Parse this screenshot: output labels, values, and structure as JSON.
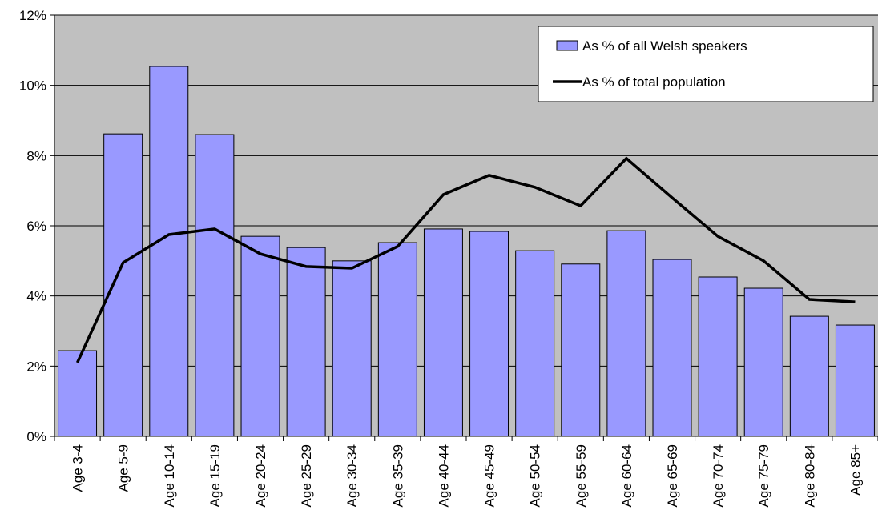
{
  "chart_data": {
    "type": "bar_line",
    "categories": [
      "Age 3-4",
      "Age 5-9",
      "Age 10-14",
      "Age 15-19",
      "Age 20-24",
      "Age 25-29",
      "Age 30-34",
      "Age 35-39",
      "Age 40-44",
      "Age 45-49",
      "Age 50-54",
      "Age 55-59",
      "Age 60-64",
      "Age 65-69",
      "Age 70-74",
      "Age 75-79",
      "Age 80-84",
      "Age 85+"
    ],
    "series": [
      {
        "name": "As % of all Welsh speakers",
        "type": "bar",
        "color": "#9999ff",
        "values": [
          2.44,
          8.62,
          10.54,
          8.6,
          5.7,
          5.38,
          5.0,
          5.52,
          5.91,
          5.84,
          5.29,
          4.91,
          5.86,
          5.04,
          4.54,
          4.22,
          3.42,
          3.17
        ]
      },
      {
        "name": "As % of total population",
        "type": "line",
        "color": "#000000",
        "values": [
          2.1,
          4.95,
          5.75,
          5.91,
          5.2,
          4.84,
          4.79,
          5.41,
          6.89,
          7.44,
          7.1,
          6.57,
          7.92,
          6.8,
          5.7,
          5.0,
          3.9,
          3.83
        ]
      }
    ],
    "ylim": [
      0,
      12
    ],
    "yticks": [
      {
        "value": 0,
        "label": "0%"
      },
      {
        "value": 2,
        "label": "2%"
      },
      {
        "value": 4,
        "label": "4%"
      },
      {
        "value": 6,
        "label": "6%"
      },
      {
        "value": 8,
        "label": "8%"
      },
      {
        "value": 10,
        "label": "10%"
      },
      {
        "value": 12,
        "label": "12%"
      }
    ],
    "grid": true,
    "legend": "top-right",
    "plot_background": "#c0c0c0"
  }
}
